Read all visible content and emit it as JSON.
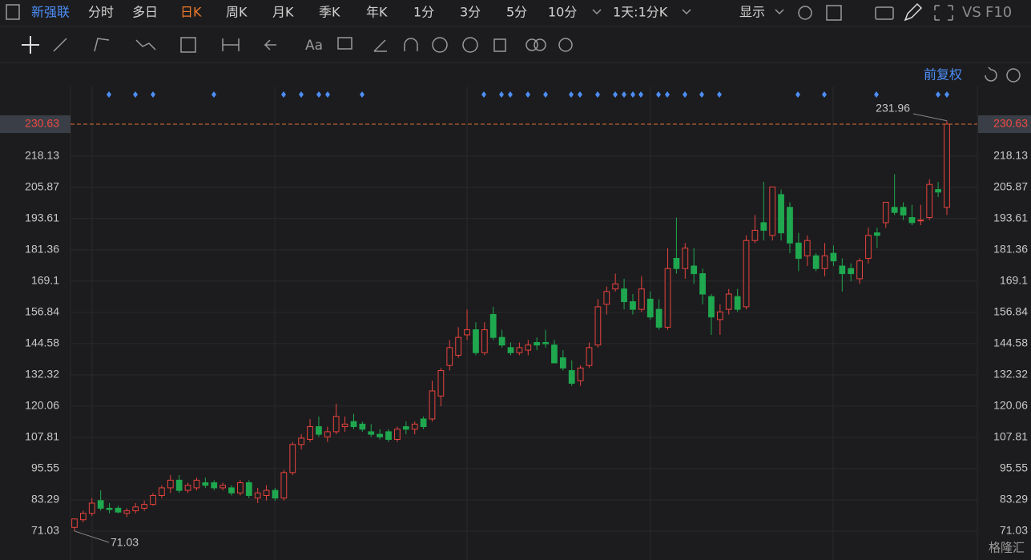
{
  "toolbar": {
    "stock": "新强联",
    "periods": [
      "分时",
      "多日",
      "日K",
      "周K",
      "月K",
      "季K",
      "年K",
      "1分",
      "3分",
      "5分",
      "10分"
    ],
    "active_period": "日K",
    "interval": "1天:1分K",
    "display": "显示",
    "vs": "VS",
    "f10": "F10"
  },
  "drawing_tools": {
    "font": "Aa"
  },
  "adjust": "前复权",
  "watermark": "格隆汇",
  "chart_data": {
    "type": "candlestick",
    "candles": [
      [
        72.5,
        76,
        71.03,
        75.8
      ],
      [
        75.5,
        79,
        74.5,
        78
      ],
      [
        78,
        84,
        77,
        82
      ],
      [
        83,
        87,
        79,
        80
      ],
      [
        80,
        82,
        78,
        79.5
      ],
      [
        80,
        81,
        78,
        78.5
      ],
      [
        78,
        80,
        76.5,
        79
      ],
      [
        79,
        82,
        78,
        80.5
      ],
      [
        80,
        83,
        79,
        81.5
      ],
      [
        81.5,
        86,
        81,
        85
      ],
      [
        85,
        89,
        84,
        88
      ],
      [
        88,
        93,
        86,
        91
      ],
      [
        91,
        93,
        86,
        87
      ],
      [
        87,
        90,
        86,
        89
      ],
      [
        88,
        92,
        87,
        91
      ],
      [
        90,
        92,
        88,
        89
      ],
      [
        90,
        91,
        87,
        88
      ],
      [
        88,
        90,
        87,
        89
      ],
      [
        88,
        89,
        85,
        86
      ],
      [
        86,
        91,
        85,
        90
      ],
      [
        90,
        91,
        84,
        85
      ],
      [
        84,
        88,
        82,
        86
      ],
      [
        85,
        89,
        83,
        87
      ],
      [
        87,
        88,
        83,
        84
      ],
      [
        84,
        95,
        83,
        94
      ],
      [
        94,
        106,
        93,
        105
      ],
      [
        105,
        109,
        103,
        107.5
      ],
      [
        107,
        115,
        106,
        112
      ],
      [
        112,
        116,
        108,
        109
      ],
      [
        108,
        112,
        106,
        110
      ],
      [
        110,
        121,
        109,
        116
      ],
      [
        112,
        116,
        110,
        113
      ],
      [
        114,
        117,
        111,
        112
      ],
      [
        113,
        114,
        110,
        111
      ],
      [
        110,
        113,
        108,
        109
      ],
      [
        109,
        111,
        107,
        108
      ],
      [
        110,
        111,
        106,
        107
      ],
      [
        107,
        112,
        106,
        111
      ],
      [
        112,
        114,
        109,
        111
      ],
      [
        111,
        114,
        109,
        113
      ],
      [
        115,
        116,
        111,
        112
      ],
      [
        115,
        130,
        114,
        126
      ],
      [
        124,
        135,
        120,
        134
      ],
      [
        136,
        146,
        134,
        143
      ],
      [
        140,
        151,
        139,
        147
      ],
      [
        148,
        158,
        146,
        150
      ],
      [
        150,
        153,
        140,
        141
      ],
      [
        141,
        153,
        140,
        150
      ],
      [
        156,
        159,
        146,
        147
      ],
      [
        147,
        150,
        143,
        144
      ],
      [
        143,
        145,
        140,
        141
      ],
      [
        141,
        145,
        140,
        143
      ],
      [
        142,
        146,
        140,
        144
      ],
      [
        145,
        147,
        142,
        144
      ],
      [
        145,
        150,
        143,
        144.5
      ],
      [
        144,
        146,
        137,
        137
      ],
      [
        139,
        142,
        134,
        135
      ],
      [
        134,
        138,
        128,
        129
      ],
      [
        130,
        136,
        128,
        135
      ],
      [
        136,
        145,
        135,
        143
      ],
      [
        144,
        162,
        143,
        159
      ],
      [
        160,
        167,
        156,
        165
      ],
      [
        166,
        172,
        165,
        168
      ],
      [
        166,
        170,
        158,
        161
      ],
      [
        161,
        164,
        156,
        158
      ],
      [
        158,
        171,
        157,
        166
      ],
      [
        162,
        165,
        154,
        155
      ],
      [
        158,
        162,
        150,
        151
      ],
      [
        151,
        182,
        150,
        174
      ],
      [
        178,
        194,
        172,
        174
      ],
      [
        174,
        184,
        170,
        182
      ],
      [
        175,
        182,
        168,
        172
      ],
      [
        172,
        174,
        160,
        164
      ],
      [
        163,
        164,
        148,
        155
      ],
      [
        154,
        160,
        148,
        157
      ],
      [
        158,
        166,
        156,
        164
      ],
      [
        163,
        166,
        157,
        158
      ],
      [
        159,
        187,
        158,
        185
      ],
      [
        185,
        195,
        184,
        189
      ],
      [
        192,
        208,
        185,
        189
      ],
      [
        187,
        206,
        185,
        206
      ],
      [
        203,
        205,
        185,
        188
      ],
      [
        198,
        200,
        180,
        184
      ],
      [
        184,
        188,
        173,
        178
      ],
      [
        179,
        187,
        175,
        185
      ],
      [
        179,
        180,
        173,
        174
      ],
      [
        174,
        184,
        171,
        179
      ],
      [
        180,
        183,
        175,
        177
      ],
      [
        175,
        178,
        165,
        172
      ],
      [
        174,
        176,
        169,
        172
      ],
      [
        170,
        178,
        168,
        177
      ],
      [
        178,
        190,
        176,
        187
      ],
      [
        188,
        190,
        182,
        187
      ],
      [
        192,
        200,
        190,
        200
      ],
      [
        198,
        211,
        195,
        196
      ],
      [
        198,
        200,
        193,
        195
      ],
      [
        194,
        199,
        191,
        192
      ],
      [
        193,
        199,
        191,
        193
      ],
      [
        194,
        209,
        193,
        207
      ],
      [
        205,
        208,
        202,
        204
      ],
      [
        198,
        231.96,
        195,
        230.63
      ]
    ],
    "up_color": "#e8433e",
    "down_color": "#1fa84f",
    "ylim": [
      59.7,
      247.9
    ],
    "yticks": [
      71.03,
      83.29,
      95.55,
      107.81,
      120.06,
      132.32,
      144.58,
      156.84,
      169.1,
      181.36,
      193.61,
      205.87,
      218.13
    ],
    "grid": true,
    "last_price": 230.63,
    "high_label": 231.96,
    "low_label": 71.03
  }
}
